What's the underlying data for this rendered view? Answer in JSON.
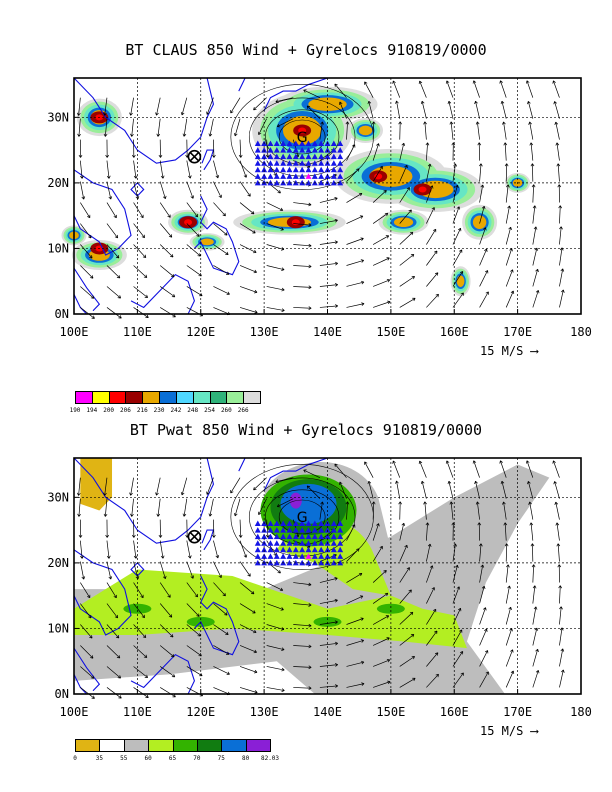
{
  "panels": [
    {
      "title": "BT CLAUS 850 Wind + Gyrelocs 910819/0000",
      "x_ticks": [
        "100E",
        "110E",
        "120E",
        "130E",
        "140E",
        "150E",
        "160E",
        "170E",
        "180"
      ],
      "y_ticks": [
        "0N",
        "10N",
        "20N",
        "30N"
      ],
      "ref_vector": "15 M/S",
      "colorbar": {
        "labels": [
          "190",
          "194",
          "200",
          "206",
          "216",
          "230",
          "242",
          "248",
          "254",
          "260",
          "266"
        ],
        "colors": [
          "#ff00ff",
          "#ffff00",
          "#ff0000",
          "#990000",
          "#e8a800",
          "#0a6fd6",
          "#4fd7ff",
          "#66e6c4",
          "#2fb37a",
          "#99ee99",
          "#dddddd"
        ]
      }
    },
    {
      "title": "BT Pwat 850 Wind + Gyrelocs 910819/0000",
      "x_ticks": [
        "100E",
        "110E",
        "120E",
        "130E",
        "140E",
        "150E",
        "160E",
        "170E",
        "180"
      ],
      "y_ticks": [
        "0N",
        "10N",
        "20N",
        "30N"
      ],
      "ref_vector": "15 M/S",
      "colorbar": {
        "labels": [
          "0",
          "35",
          "55",
          "60",
          "65",
          "70",
          "75",
          "80",
          "82.03"
        ],
        "colors": [
          "#e0b414",
          "#ffffff",
          "#bdbdbd",
          "#b3ee22",
          "#33b300",
          "#117c11",
          "#0a6fd6",
          "#8a1fd6"
        ]
      }
    }
  ],
  "chart_data": [
    {
      "type": "heatmap",
      "title": "BT CLAUS 850 Wind + Gyrelocs 910819/0000",
      "xlabel": "",
      "ylabel": "",
      "xlim": [
        100,
        180
      ],
      "ylim": [
        0,
        36
      ],
      "grid": true,
      "field": "CLAUS brightness temperature",
      "colorbar_levels": [
        190,
        194,
        200,
        206,
        216,
        230,
        242,
        248,
        254,
        260,
        266
      ],
      "gyre_center": {
        "lon": 136,
        "lat": 27
      },
      "marker_x": {
        "lon": 119,
        "lat": 24
      },
      "cold_clusters": [
        {
          "lon": 104,
          "lat": 30,
          "level": 216
        },
        {
          "lon": 136,
          "lat": 28,
          "level": 216
        },
        {
          "lon": 148,
          "lat": 21,
          "level": 216
        },
        {
          "lon": 155,
          "lat": 19,
          "level": 216
        },
        {
          "lon": 118,
          "lat": 14,
          "level": 216
        },
        {
          "lon": 135,
          "lat": 14,
          "level": 216
        },
        {
          "lon": 104,
          "lat": 10,
          "level": 216
        }
      ]
    },
    {
      "type": "heatmap",
      "title": "BT Pwat 850 Wind + Gyrelocs 910819/0000",
      "xlabel": "",
      "ylabel": "",
      "xlim": [
        100,
        180
      ],
      "ylim": [
        0,
        36
      ],
      "grid": true,
      "field": "precipitable water",
      "colorbar_levels": [
        0,
        35,
        55,
        60,
        65,
        70,
        75,
        80,
        82.03
      ],
      "gyre_center": {
        "lon": 136,
        "lat": 27
      },
      "marker_x": {
        "lon": 119,
        "lat": 24
      }
    }
  ]
}
